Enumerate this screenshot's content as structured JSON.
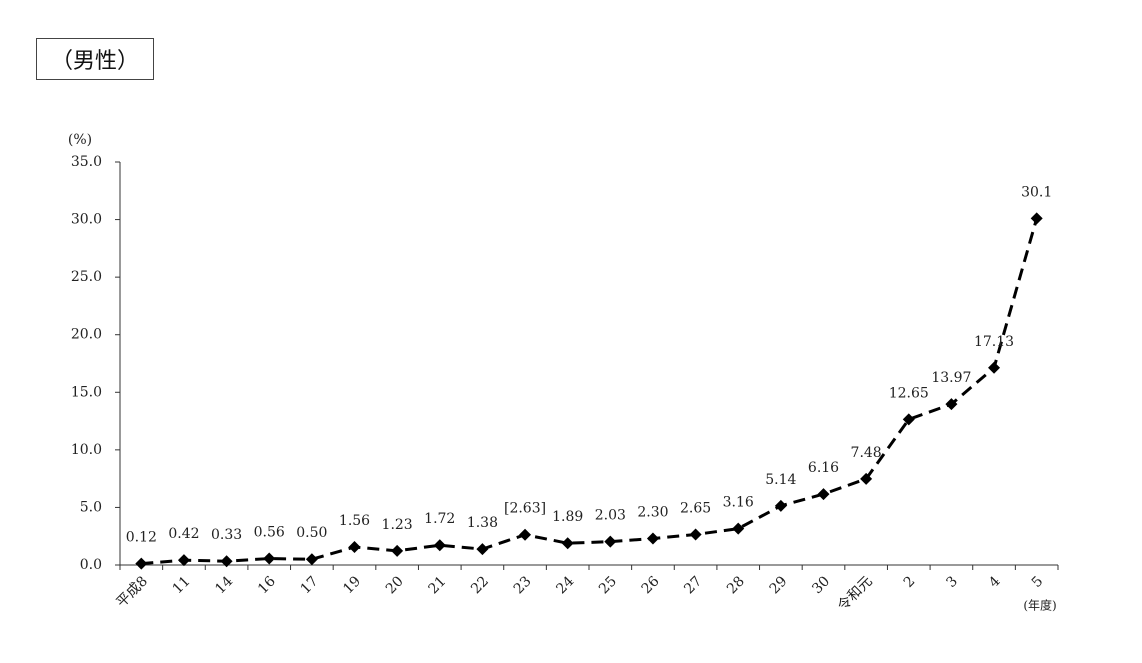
{
  "chart_data": {
    "type": "line",
    "title": "（男性）",
    "y_unit": "(%)",
    "x_unit": "(年度)",
    "categories": [
      "平成8",
      "11",
      "14",
      "16",
      "17",
      "19",
      "20",
      "21",
      "22",
      "23",
      "24",
      "25",
      "26",
      "27",
      "28",
      "29",
      "30",
      "令和元",
      "2",
      "3",
      "4",
      "5"
    ],
    "values": [
      0.12,
      0.42,
      0.33,
      0.56,
      0.5,
      1.56,
      1.23,
      1.72,
      1.38,
      2.63,
      1.89,
      2.03,
      2.3,
      2.65,
      3.16,
      5.14,
      6.16,
      7.48,
      12.65,
      13.97,
      17.13,
      30.1
    ],
    "value_labels": [
      "0.12",
      "0.42",
      "0.33",
      "0.56",
      "0.50",
      "1.56",
      "1.23",
      "1.72",
      "1.38",
      "[2.63]",
      "1.89",
      "2.03",
      "2.30",
      "2.65",
      "3.16",
      "5.14",
      "6.16",
      "7.48",
      "12.65",
      "13.97",
      "17.13",
      "30.1"
    ],
    "color": "#000000",
    "line_style": "dashed",
    "marker": "diamond",
    "ylim": [
      0,
      35
    ],
    "yticks": [
      {
        "value": 0,
        "label": "0.0"
      },
      {
        "value": 5,
        "label": "5.0"
      },
      {
        "value": 10,
        "label": "10.0"
      },
      {
        "value": 15,
        "label": "15.0"
      },
      {
        "value": 20,
        "label": "20.0"
      },
      {
        "value": 25,
        "label": "25.0"
      },
      {
        "value": 30,
        "label": "30.0"
      },
      {
        "value": 35,
        "label": "35.0"
      }
    ],
    "grid": false
  }
}
